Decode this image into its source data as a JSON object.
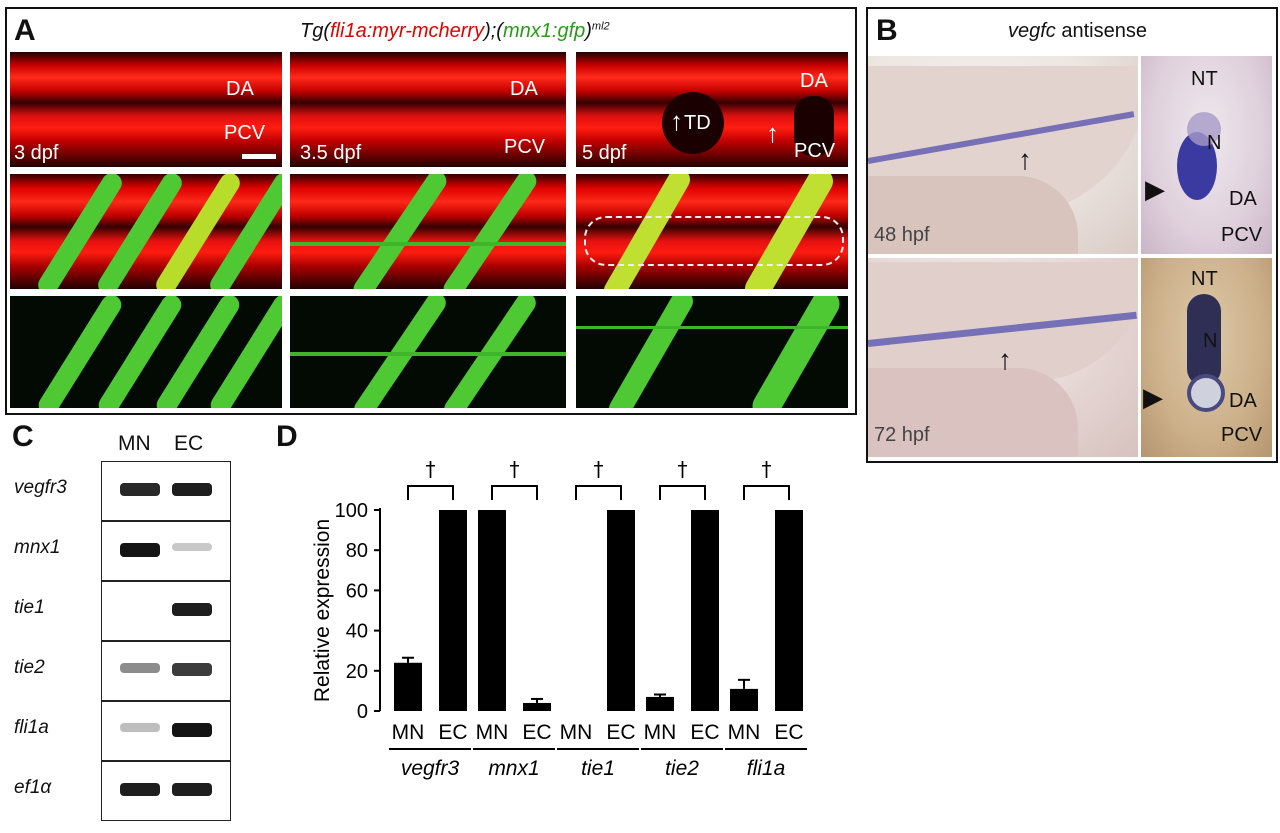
{
  "panelA": {
    "label": "A",
    "title": {
      "prefix": "Tg(",
      "red": "fli1a:myr-mcherry",
      "mid": ");(",
      "green": "mnx1:gfp",
      "suffix": ")",
      "sup": "ml2"
    },
    "tiles": [
      {
        "stage": "3 dpf",
        "da": "DA",
        "pcv": "PCV"
      },
      {
        "stage": "3.5 dpf",
        "da": "DA",
        "pcv": "PCV"
      },
      {
        "stage": "5 dpf",
        "da": "DA",
        "pcv": "PCV",
        "td": "TD"
      }
    ],
    "colors": {
      "red": "#e00000",
      "green": "#3dbd2a",
      "yellow": "#d8e020"
    }
  },
  "panelB": {
    "label": "B",
    "title": {
      "gene": "vegfc",
      "rest": " antisense"
    },
    "rows": [
      {
        "stage": "48 hpf",
        "nt": "NT",
        "n": "N",
        "da": "DA",
        "pcv": "PCV"
      },
      {
        "stage": "72 hpf",
        "nt": "NT",
        "n": "N",
        "da": "DA",
        "pcv": "PCV"
      }
    ],
    "colors": {
      "stain": "#3b3aa0"
    }
  },
  "panelC": {
    "label": "C",
    "lanes": [
      "MN",
      "EC"
    ],
    "genes": [
      "vegfr3",
      "mnx1",
      "tie1",
      "tie2",
      "fli1a",
      "ef1α"
    ],
    "bands": [
      [
        0.85,
        0.9
      ],
      [
        0.95,
        0.05
      ],
      [
        0.0,
        0.9
      ],
      [
        0.35,
        0.75
      ],
      [
        0.1,
        0.95
      ],
      [
        0.9,
        0.9
      ]
    ]
  },
  "chart_data": {
    "type": "bar",
    "panel_label": "D",
    "ylabel": "Relative expression",
    "ylim": [
      0,
      100
    ],
    "yticks": [
      "0",
      "20",
      "40",
      "60",
      "80",
      "100"
    ],
    "lanes": [
      "MN",
      "EC"
    ],
    "groups": [
      {
        "gene": "vegfr3",
        "values": [
          24,
          100
        ],
        "errors": [
          2.5,
          0
        ]
      },
      {
        "gene": "mnx1",
        "values": [
          100,
          4
        ],
        "errors": [
          0,
          2
        ]
      },
      {
        "gene": "tie1",
        "values": [
          0,
          100
        ],
        "errors": [
          0,
          0
        ]
      },
      {
        "gene": "tie2",
        "values": [
          7,
          100
        ],
        "errors": [
          1.2,
          0
        ]
      },
      {
        "gene": "fli1a",
        "values": [
          11,
          100
        ],
        "errors": [
          4.5,
          0
        ]
      }
    ],
    "significance_symbol": "†"
  }
}
